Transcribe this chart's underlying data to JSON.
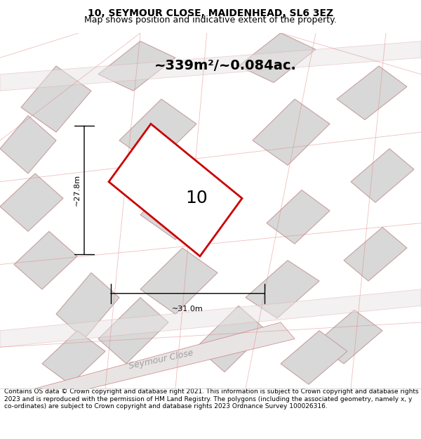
{
  "title": "10, SEYMOUR CLOSE, MAIDENHEAD, SL6 3EZ",
  "subtitle": "Map shows position and indicative extent of the property.",
  "area_text": "~339m²/~0.084ac.",
  "label_number": "10",
  "dim_width": "~31.0m",
  "dim_height": "~27.8m",
  "road_label": "Seymour Close",
  "footer": "Contains OS data © Crown copyright and database right 2021. This information is subject to Crown copyright and database rights 2023 and is reproduced with the permission of HM Land Registry. The polygons (including the associated geometry, namely x, y co-ordinates) are subject to Crown copyright and database rights 2023 Ordnance Survey 100026316.",
  "bg_color": "#f0f0f0",
  "map_bg": "#f2f2f2",
  "plot_color": "#cc0000",
  "plot_fill": "#ffffff",
  "road_bg": "#e8e8e8",
  "neighbor_fill": "#d8d8d8",
  "neighbor_stroke": "#c8a0a0",
  "title_fontsize": 10,
  "subtitle_fontsize": 9,
  "area_fontsize": 14,
  "label_fontsize": 18,
  "footer_fontsize": 6.5,
  "fig_width": 6.0,
  "fig_height": 6.25
}
